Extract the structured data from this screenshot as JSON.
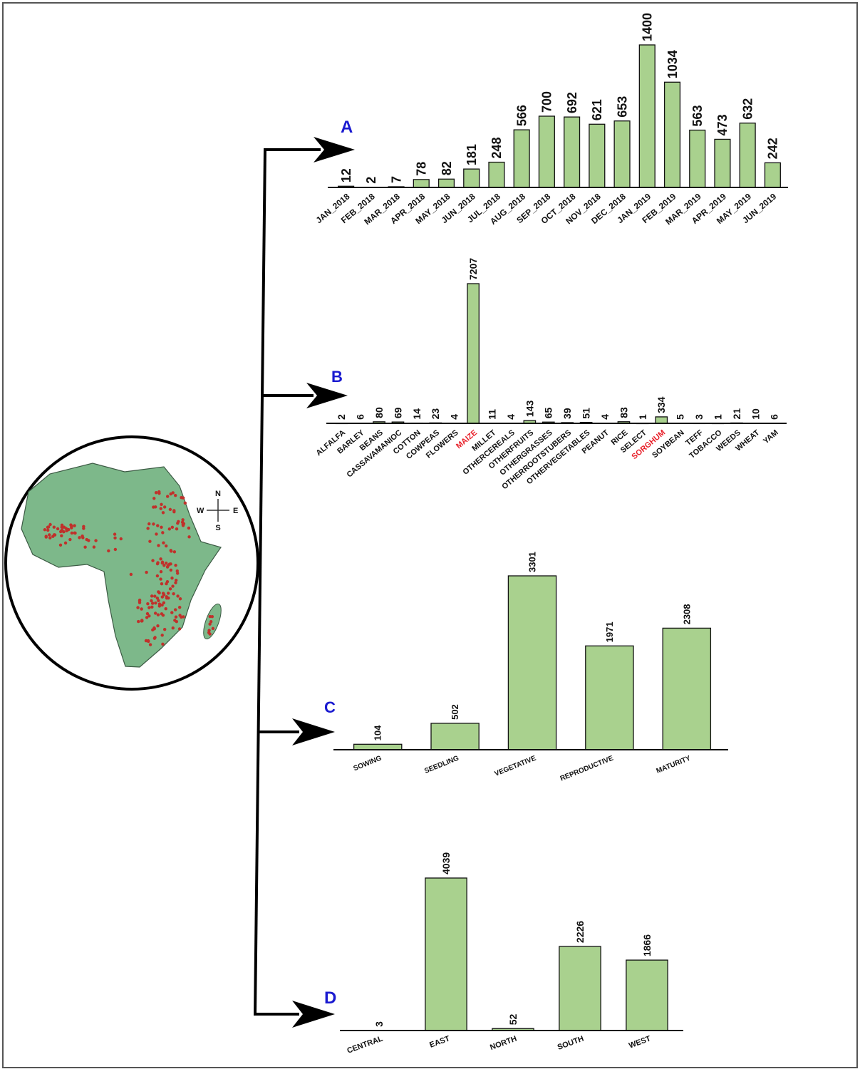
{
  "chart_data": [
    {
      "type": "bar",
      "label": "A",
      "color": "#a9d18e",
      "categories": [
        "JAN_2018",
        "FEB_2018",
        "MAR_2018",
        "APR_2018",
        "MAY_2018",
        "JUN_2018",
        "JUL_2018",
        "AUG_2018",
        "SEP_2018",
        "OCT_2018",
        "NOV_2018",
        "DEC_2018",
        "JAN_2019",
        "FEB_2019",
        "MAR_2019",
        "APR_2019",
        "MAY_2019",
        "JUN_2019"
      ],
      "values": [
        12,
        2,
        7,
        78,
        82,
        181,
        248,
        566,
        700,
        692,
        621,
        653,
        1400,
        1034,
        563,
        473,
        632,
        242
      ]
    },
    {
      "type": "bar",
      "label": "B",
      "color": "#a9d18e",
      "highlight_categories": [
        7,
        17
      ],
      "highlight_color": "#e8202a",
      "categories": [
        "ALFALFA",
        "BARLEY",
        "BEANS",
        "CASSAVAMANIOC",
        "COTTON",
        "COWPEAS",
        "FLOWERS",
        "MAIZE",
        "MILLET",
        "OTHERCEREALS",
        "OTHERFRUITS",
        "OTHERGRASSES",
        "OTHERROOTSTUBERS",
        "OTHERVEGETABLES",
        "PEANUT",
        "RICE",
        "SELECT",
        "SORGHUM",
        "SOYBEAN",
        "TEFF",
        "TOBACCO",
        "WEEDS",
        "WHEAT",
        "YAM"
      ],
      "values": [
        2,
        6,
        80,
        69,
        14,
        23,
        4,
        7207,
        11,
        4,
        143,
        65,
        39,
        51,
        4,
        83,
        1,
        334,
        5,
        3,
        1,
        21,
        10,
        6
      ]
    },
    {
      "type": "bar",
      "label": "C",
      "color": "#a9d18e",
      "categories": [
        "SOWING",
        "SEEDLING",
        "VEGETATIVE",
        "REPRODUCTIVE",
        "MATURITY"
      ],
      "values": [
        104,
        502,
        3301,
        1971,
        2308
      ]
    },
    {
      "type": "bar",
      "label": "D",
      "color": "#a9d18e",
      "categories": [
        "CENTRAL",
        "EAST",
        "NORTH",
        "SOUTH",
        "WEST"
      ],
      "values": [
        3,
        4039,
        52,
        2226,
        1866
      ]
    }
  ],
  "map": {
    "compass": [
      "N",
      "E",
      "S",
      "W"
    ]
  }
}
